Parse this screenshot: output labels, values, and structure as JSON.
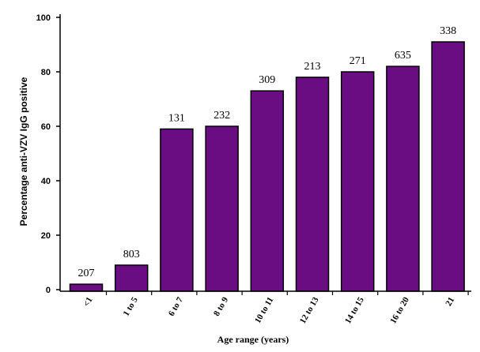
{
  "chart_data": {
    "type": "bar",
    "title": "",
    "xlabel": "Age range (years)",
    "ylabel": "Percentage anti-VZV IgG positive",
    "ylim": [
      0,
      100
    ],
    "yticks": [
      0,
      20,
      40,
      60,
      80,
      100
    ],
    "categories": [
      "<1",
      "1 to 5",
      "6 to 7",
      "8 to 9",
      "10 to 11",
      "12 to 13",
      "14 to 15",
      "16 to 20",
      "21"
    ],
    "values": [
      2,
      9,
      59,
      60,
      73,
      78,
      80,
      82,
      91
    ],
    "data_labels": [
      "207",
      "803",
      "131",
      "232",
      "309",
      "213",
      "271",
      "635",
      "338"
    ],
    "bar_color": "#6a0d82",
    "grid": false,
    "legend": "none"
  }
}
